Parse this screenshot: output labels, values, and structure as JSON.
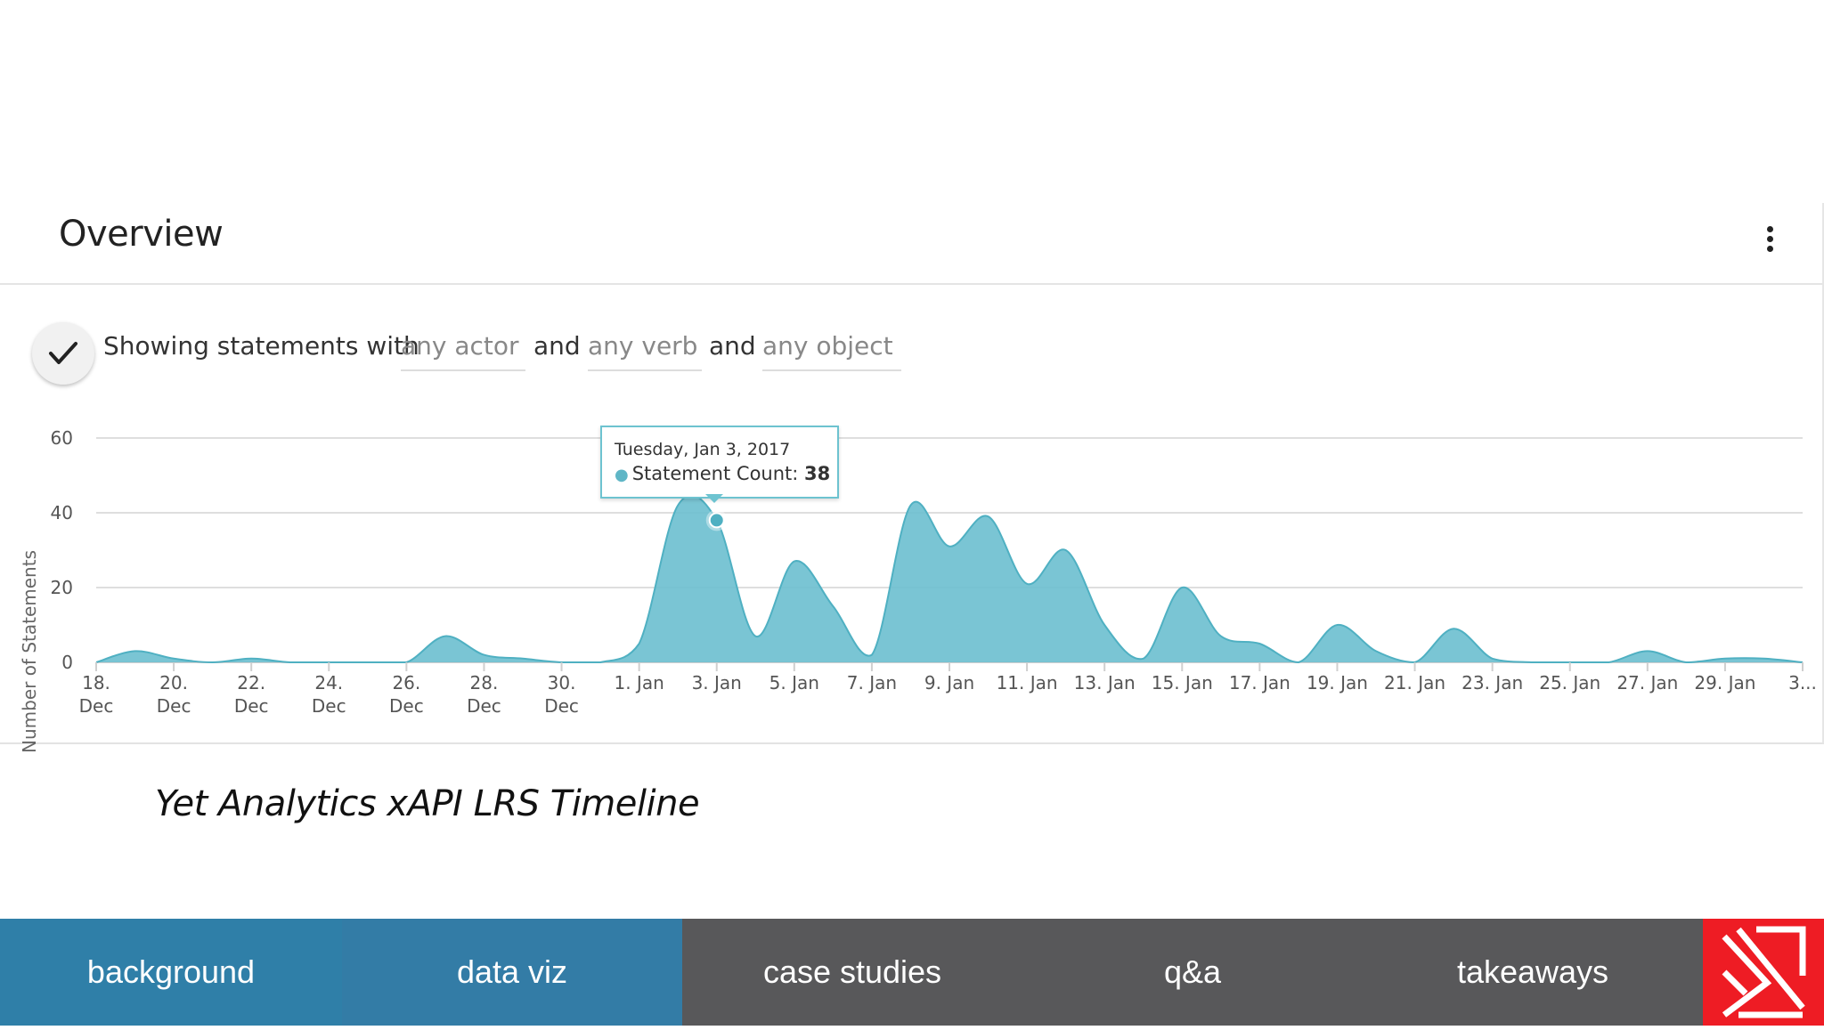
{
  "panel": {
    "title": "Overview",
    "menu_icon": "more-vertical-icon"
  },
  "filters": {
    "prefix": "Showing statements with",
    "actor": "any actor",
    "conjunction_1": "and",
    "verb": "any verb",
    "conjunction_2": "and",
    "object": "any object",
    "check_icon": "check-icon"
  },
  "tooltip": {
    "date": "Tuesday, Jan 3, 2017",
    "label": "Statement Count:",
    "value": "38"
  },
  "caption": "Yet Analytics xAPI LRS Timeline",
  "nav": {
    "items": [
      {
        "label": "background",
        "color": "#2f7fa8"
      },
      {
        "label": "data viz",
        "color": "#337ca6"
      },
      {
        "label": "case studies",
        "color": "#58585a"
      },
      {
        "label": "q&a",
        "color": "#58585a"
      },
      {
        "label": "takeaways",
        "color": "#58585a"
      }
    ],
    "logo_icon": "brand-logo-icon",
    "logo_color": "#ee1c24"
  },
  "chart_data": {
    "type": "area",
    "ylabel": "Number of Statements",
    "ylim": [
      0,
      60
    ],
    "yticks": [
      0,
      20,
      40,
      60
    ],
    "xtick_labels": [
      [
        "18.",
        "Dec"
      ],
      [
        "20.",
        "Dec"
      ],
      [
        "22.",
        "Dec"
      ],
      [
        "24.",
        "Dec"
      ],
      [
        "26.",
        "Dec"
      ],
      [
        "28.",
        "Dec"
      ],
      [
        "30.",
        "Dec"
      ],
      [
        "1. Jan"
      ],
      [
        "3. Jan"
      ],
      [
        "5. Jan"
      ],
      [
        "7. Jan"
      ],
      [
        "9. Jan"
      ],
      [
        "11. Jan"
      ],
      [
        "13. Jan"
      ],
      [
        "15. Jan"
      ],
      [
        "17. Jan"
      ],
      [
        "19. Jan"
      ],
      [
        "21. Jan"
      ],
      [
        "23. Jan"
      ],
      [
        "25. Jan"
      ],
      [
        "27. Jan"
      ],
      [
        "29. Jan"
      ],
      [
        "3..."
      ]
    ],
    "x": [
      "Dec 18",
      "Dec 19",
      "Dec 20",
      "Dec 21",
      "Dec 22",
      "Dec 23",
      "Dec 24",
      "Dec 25",
      "Dec 26",
      "Dec 27",
      "Dec 28",
      "Dec 29",
      "Dec 30",
      "Dec 31",
      "Jan 1",
      "Jan 2",
      "Jan 3",
      "Jan 4",
      "Jan 5",
      "Jan 6",
      "Jan 7",
      "Jan 8",
      "Jan 9",
      "Jan 10",
      "Jan 11",
      "Jan 12",
      "Jan 13",
      "Jan 14",
      "Jan 15",
      "Jan 16",
      "Jan 17",
      "Jan 18",
      "Jan 19",
      "Jan 20",
      "Jan 21",
      "Jan 22",
      "Jan 23",
      "Jan 24",
      "Jan 25",
      "Jan 26",
      "Jan 27",
      "Jan 28",
      "Jan 29",
      "Jan 30",
      "Jan 31"
    ],
    "values": [
      0,
      3,
      1,
      0,
      1,
      0,
      0,
      0,
      0,
      7,
      2,
      1,
      0,
      0,
      5,
      42,
      38,
      7,
      27,
      15,
      2,
      42,
      31,
      39,
      21,
      30,
      10,
      1,
      20,
      7,
      5,
      0,
      10,
      3,
      0,
      9,
      1,
      0,
      0,
      0,
      3,
      0,
      1,
      1,
      0
    ],
    "highlight": {
      "x": "Jan 3",
      "value": 38
    },
    "series_color": "#6bbfcf",
    "grid": true
  }
}
